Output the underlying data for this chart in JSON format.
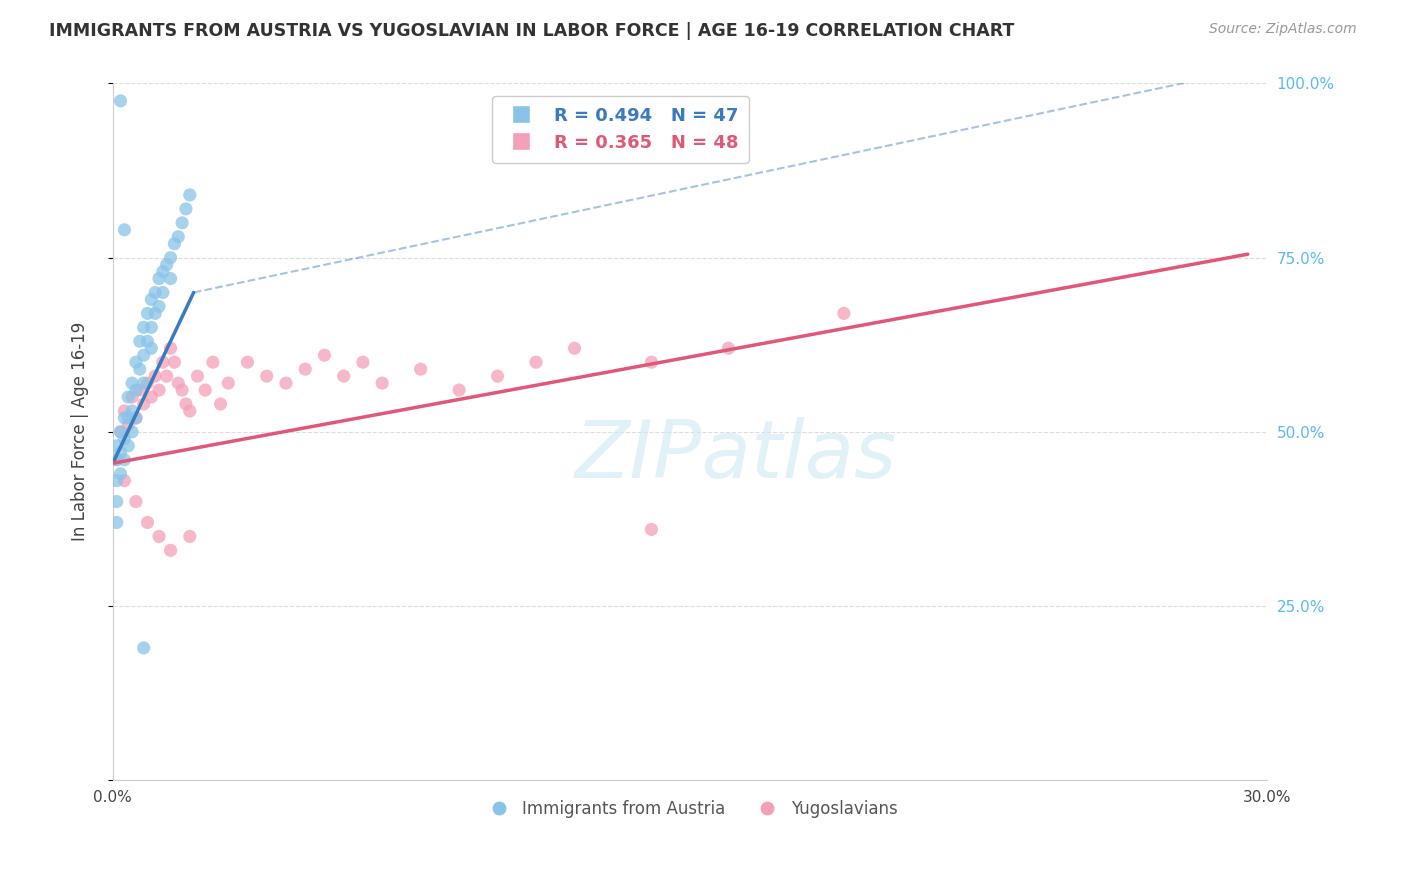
{
  "title": "IMMIGRANTS FROM AUSTRIA VS YUGOSLAVIAN IN LABOR FORCE | AGE 16-19 CORRELATION CHART",
  "source": "Source: ZipAtlas.com",
  "ylabel_left": "In Labor Force | Age 16-19",
  "legend_label_blue": "Immigrants from Austria",
  "legend_label_pink": "Yugoslavians",
  "R_blue": 0.494,
  "N_blue": 47,
  "R_pink": 0.365,
  "N_pink": 48,
  "blue_color": "#89c4e8",
  "pink_color": "#f4a0b8",
  "blue_line_color": "#3a7abf",
  "pink_line_color": "#e05878",
  "right_axis_color": "#5bb8f5",
  "xlim": [
    0.0,
    0.3
  ],
  "ylim": [
    0.0,
    1.0
  ],
  "watermark": "ZIPatlas",
  "background_color": "#ffffff",
  "grid_color": "#dddddd",
  "austria_x": [
    0.001,
    0.001,
    0.002,
    0.002,
    0.002,
    0.003,
    0.003,
    0.003,
    0.004,
    0.004,
    0.004,
    0.005,
    0.005,
    0.005,
    0.006,
    0.006,
    0.006,
    0.007,
    0.007,
    0.008,
    0.008,
    0.008,
    0.009,
    0.009,
    0.01,
    0.01,
    0.01,
    0.011,
    0.011,
    0.012,
    0.012,
    0.013,
    0.013,
    0.014,
    0.015,
    0.015,
    0.016,
    0.017,
    0.018,
    0.019,
    0.02,
    0.001,
    0.001,
    0.001,
    0.008,
    0.002,
    0.003
  ],
  "austria_y": [
    0.48,
    0.46,
    0.5,
    0.47,
    0.44,
    0.52,
    0.49,
    0.46,
    0.55,
    0.52,
    0.48,
    0.57,
    0.53,
    0.5,
    0.6,
    0.56,
    0.52,
    0.63,
    0.59,
    0.65,
    0.61,
    0.57,
    0.67,
    0.63,
    0.69,
    0.65,
    0.62,
    0.7,
    0.67,
    0.72,
    0.68,
    0.73,
    0.7,
    0.74,
    0.75,
    0.72,
    0.77,
    0.78,
    0.8,
    0.82,
    0.84,
    0.43,
    0.4,
    0.37,
    0.19,
    0.975,
    0.79
  ],
  "yugoslav_x": [
    0.001,
    0.002,
    0.003,
    0.004,
    0.005,
    0.006,
    0.007,
    0.008,
    0.009,
    0.01,
    0.011,
    0.012,
    0.013,
    0.014,
    0.015,
    0.016,
    0.017,
    0.018,
    0.019,
    0.02,
    0.022,
    0.024,
    0.026,
    0.028,
    0.03,
    0.035,
    0.04,
    0.045,
    0.05,
    0.055,
    0.06,
    0.065,
    0.07,
    0.08,
    0.09,
    0.1,
    0.11,
    0.12,
    0.14,
    0.16,
    0.003,
    0.006,
    0.009,
    0.012,
    0.015,
    0.02,
    0.19,
    0.14
  ],
  "yugoslav_y": [
    0.46,
    0.5,
    0.53,
    0.51,
    0.55,
    0.52,
    0.56,
    0.54,
    0.57,
    0.55,
    0.58,
    0.56,
    0.6,
    0.58,
    0.62,
    0.6,
    0.57,
    0.56,
    0.54,
    0.53,
    0.58,
    0.56,
    0.6,
    0.54,
    0.57,
    0.6,
    0.58,
    0.57,
    0.59,
    0.61,
    0.58,
    0.6,
    0.57,
    0.59,
    0.56,
    0.58,
    0.6,
    0.62,
    0.6,
    0.62,
    0.43,
    0.4,
    0.37,
    0.35,
    0.33,
    0.35,
    0.67,
    0.36
  ],
  "blue_regline_x": [
    0.0,
    0.021
  ],
  "blue_regline_y": [
    0.455,
    0.7
  ],
  "blue_dashline_x": [
    0.021,
    0.295
  ],
  "blue_dashline_y": [
    0.7,
    1.02
  ],
  "pink_regline_x": [
    0.0,
    0.295
  ],
  "pink_regline_y": [
    0.455,
    0.755
  ]
}
